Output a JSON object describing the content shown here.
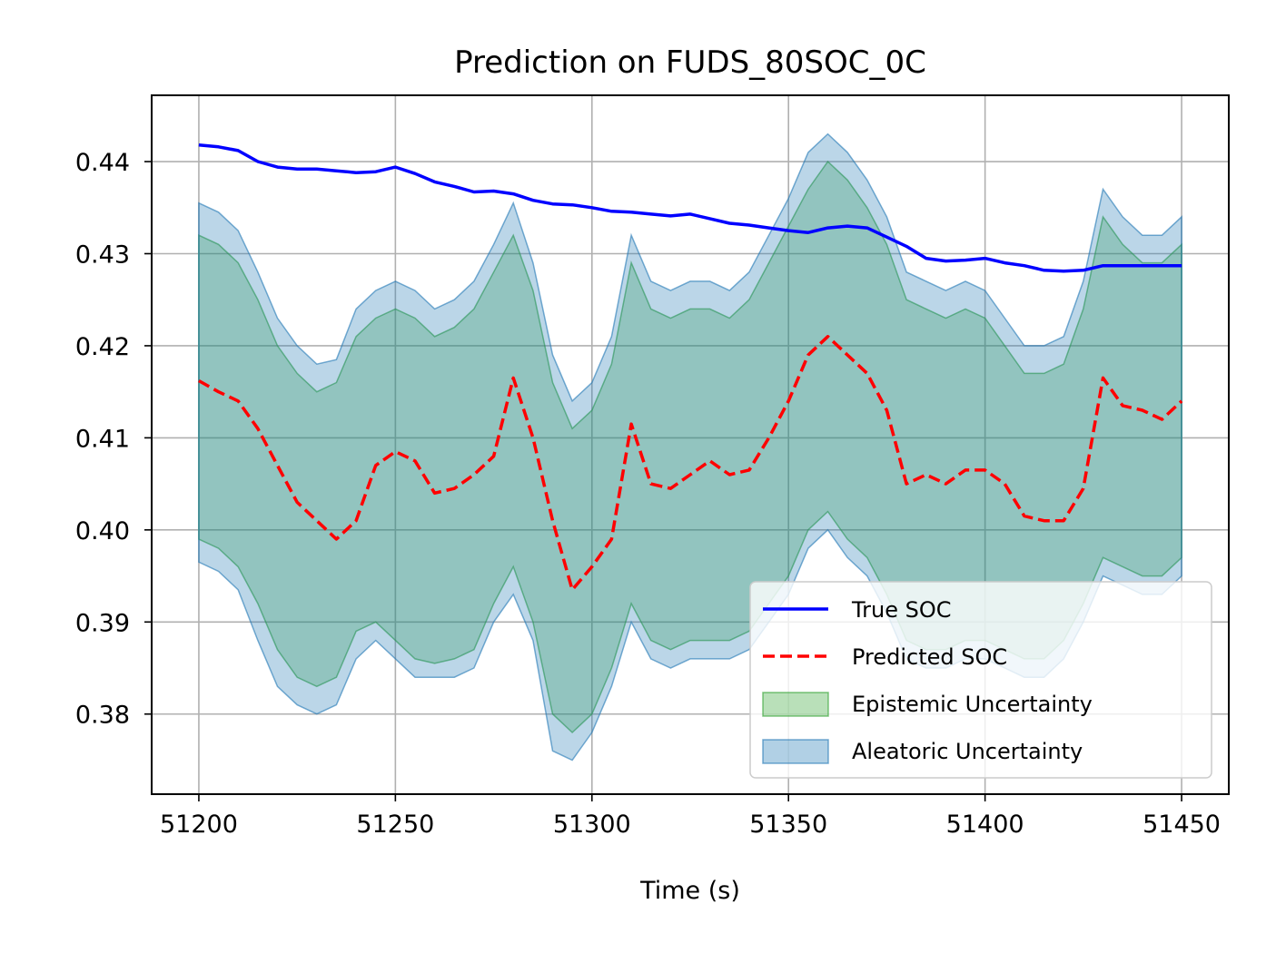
{
  "chart_data": {
    "type": "line",
    "title": "Prediction on FUDS_80SOC_0C",
    "xlabel": "Time (s)",
    "ylabel": "",
    "xlim": [
      51188,
      51462
    ],
    "ylim": [
      0.3713,
      0.4472
    ],
    "x_ticks": [
      51200,
      51250,
      51300,
      51350,
      51400,
      51450
    ],
    "x_tick_labels": [
      "51200",
      "51250",
      "51300",
      "51350",
      "51400",
      "51450"
    ],
    "y_ticks": [
      0.38,
      0.39,
      0.4,
      0.41,
      0.42,
      0.43,
      0.44
    ],
    "y_tick_labels": [
      "0.38",
      "0.39",
      "0.40",
      "0.41",
      "0.42",
      "0.43",
      "0.44"
    ],
    "grid": true,
    "legend_position": "lower-right",
    "x": [
      51200,
      51205,
      51210,
      51215,
      51220,
      51225,
      51230,
      51235,
      51240,
      51245,
      51250,
      51255,
      51260,
      51265,
      51270,
      51275,
      51280,
      51285,
      51290,
      51295,
      51300,
      51305,
      51310,
      51315,
      51320,
      51325,
      51330,
      51335,
      51340,
      51345,
      51350,
      51355,
      51360,
      51365,
      51370,
      51375,
      51380,
      51385,
      51390,
      51395,
      51400,
      51405,
      51410,
      51415,
      51420,
      51425,
      51430,
      51435,
      51440,
      51445,
      51450
    ],
    "series": [
      {
        "name": "True SOC",
        "color": "#0000ff",
        "style": "solid",
        "values": [
          0.4418,
          0.4416,
          0.4412,
          0.44,
          0.4394,
          0.4392,
          0.4392,
          0.439,
          0.4388,
          0.4389,
          0.4394,
          0.4387,
          0.4378,
          0.4373,
          0.4367,
          0.4368,
          0.4365,
          0.4358,
          0.4354,
          0.4353,
          0.435,
          0.4346,
          0.4345,
          0.4343,
          0.4341,
          0.4343,
          0.4338,
          0.4333,
          0.4331,
          0.4328,
          0.4325,
          0.4323,
          0.4328,
          0.433,
          0.4328,
          0.4318,
          0.4308,
          0.4295,
          0.4292,
          0.4293,
          0.4295,
          0.429,
          0.4287,
          0.4282,
          0.4281,
          0.4282,
          0.4287,
          0.4287,
          0.4287,
          0.4287,
          0.4287
        ]
      },
      {
        "name": "Predicted SOC",
        "color": "#ff0000",
        "style": "dashed",
        "values": [
          0.4162,
          0.415,
          0.414,
          0.411,
          0.407,
          0.403,
          0.401,
          0.399,
          0.401,
          0.407,
          0.4085,
          0.4075,
          0.404,
          0.4045,
          0.406,
          0.408,
          0.4165,
          0.41,
          0.401,
          0.3935,
          0.396,
          0.399,
          0.4115,
          0.405,
          0.4045,
          0.406,
          0.4075,
          0.406,
          0.4065,
          0.41,
          0.414,
          0.419,
          0.421,
          0.419,
          0.417,
          0.413,
          0.405,
          0.406,
          0.405,
          0.4065,
          0.4065,
          0.405,
          0.4015,
          0.401,
          0.401,
          0.4045,
          0.4165,
          0.4135,
          0.413,
          0.412,
          0.414
        ]
      }
    ],
    "bands": [
      {
        "name": "Epistemic Uncertainty",
        "color": "#2ca02c",
        "opacity": 0.28,
        "lower": [
          0.399,
          0.398,
          0.396,
          0.392,
          0.387,
          0.384,
          0.383,
          0.384,
          0.389,
          0.39,
          0.388,
          0.386,
          0.3855,
          0.386,
          0.387,
          0.392,
          0.396,
          0.39,
          0.38,
          0.378,
          0.38,
          0.385,
          0.392,
          0.388,
          0.387,
          0.388,
          0.388,
          0.388,
          0.389,
          0.392,
          0.395,
          0.4,
          0.402,
          0.399,
          0.397,
          0.393,
          0.388,
          0.387,
          0.387,
          0.388,
          0.388,
          0.387,
          0.386,
          0.386,
          0.388,
          0.392,
          0.397,
          0.396,
          0.395,
          0.395,
          0.397
        ],
        "upper": [
          0.432,
          0.431,
          0.429,
          0.425,
          0.42,
          0.417,
          0.415,
          0.416,
          0.421,
          0.423,
          0.424,
          0.423,
          0.421,
          0.422,
          0.424,
          0.428,
          0.432,
          0.426,
          0.416,
          0.411,
          0.413,
          0.418,
          0.429,
          0.424,
          0.423,
          0.424,
          0.424,
          0.423,
          0.425,
          0.429,
          0.433,
          0.437,
          0.44,
          0.438,
          0.435,
          0.431,
          0.425,
          0.424,
          0.423,
          0.424,
          0.423,
          0.42,
          0.417,
          0.417,
          0.418,
          0.424,
          0.434,
          0.431,
          0.429,
          0.429,
          0.431
        ]
      },
      {
        "name": "Aleatoric Uncertainty",
        "color": "#1f77b4",
        "opacity": 0.3,
        "lower": [
          0.3965,
          0.3955,
          0.3935,
          0.388,
          0.383,
          0.381,
          0.38,
          0.381,
          0.386,
          0.388,
          0.386,
          0.384,
          0.384,
          0.384,
          0.385,
          0.39,
          0.393,
          0.388,
          0.376,
          0.375,
          0.378,
          0.383,
          0.39,
          0.386,
          0.385,
          0.386,
          0.386,
          0.386,
          0.387,
          0.39,
          0.393,
          0.398,
          0.4,
          0.397,
          0.395,
          0.391,
          0.386,
          0.385,
          0.385,
          0.386,
          0.386,
          0.385,
          0.384,
          0.384,
          0.386,
          0.39,
          0.395,
          0.394,
          0.393,
          0.393,
          0.395
        ],
        "upper": [
          0.4355,
          0.4345,
          0.4325,
          0.428,
          0.423,
          0.42,
          0.418,
          0.4185,
          0.424,
          0.426,
          0.427,
          0.426,
          0.424,
          0.425,
          0.427,
          0.431,
          0.4355,
          0.429,
          0.419,
          0.414,
          0.416,
          0.421,
          0.432,
          0.427,
          0.426,
          0.427,
          0.427,
          0.426,
          0.428,
          0.432,
          0.436,
          0.441,
          0.443,
          0.441,
          0.438,
          0.434,
          0.428,
          0.427,
          0.426,
          0.427,
          0.426,
          0.423,
          0.42,
          0.42,
          0.421,
          0.427,
          0.437,
          0.434,
          0.432,
          0.432,
          0.434
        ]
      }
    ]
  }
}
